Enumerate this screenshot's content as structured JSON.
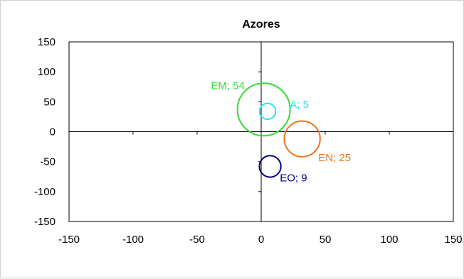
{
  "chart_data": {
    "type": "bubble",
    "title": "Azores",
    "xlabel": "",
    "ylabel": "",
    "xlim": [
      -150,
      150
    ],
    "ylim": [
      -150,
      150
    ],
    "x_ticks": [
      -150,
      -100,
      -50,
      0,
      50,
      100,
      150
    ],
    "y_ticks": [
      -150,
      -100,
      -50,
      0,
      50,
      100,
      150
    ],
    "x_tick_labels": [
      "-150",
      "-100",
      "-50",
      "0",
      "50",
      "100",
      "150"
    ],
    "y_tick_labels": [
      "-150",
      "-100",
      "-50",
      "0",
      "50",
      "100",
      "150"
    ],
    "grid": false,
    "points": [
      {
        "label": "EM; 54",
        "x": 2,
        "y": 37,
        "size": 54,
        "color": "#33dd33",
        "label_position": "upper-left"
      },
      {
        "label": "A; 5",
        "x": 5,
        "y": 34,
        "size": 5,
        "color": "#22e6e6",
        "label_position": "right"
      },
      {
        "label": "EN; 25",
        "x": 32,
        "y": -12,
        "size": 25,
        "color": "#f07020",
        "label_position": "lower-right"
      },
      {
        "label": "EO; 9",
        "x": 7,
        "y": -58,
        "size": 9,
        "color": "#000080",
        "label_position": "lower-right"
      }
    ]
  }
}
